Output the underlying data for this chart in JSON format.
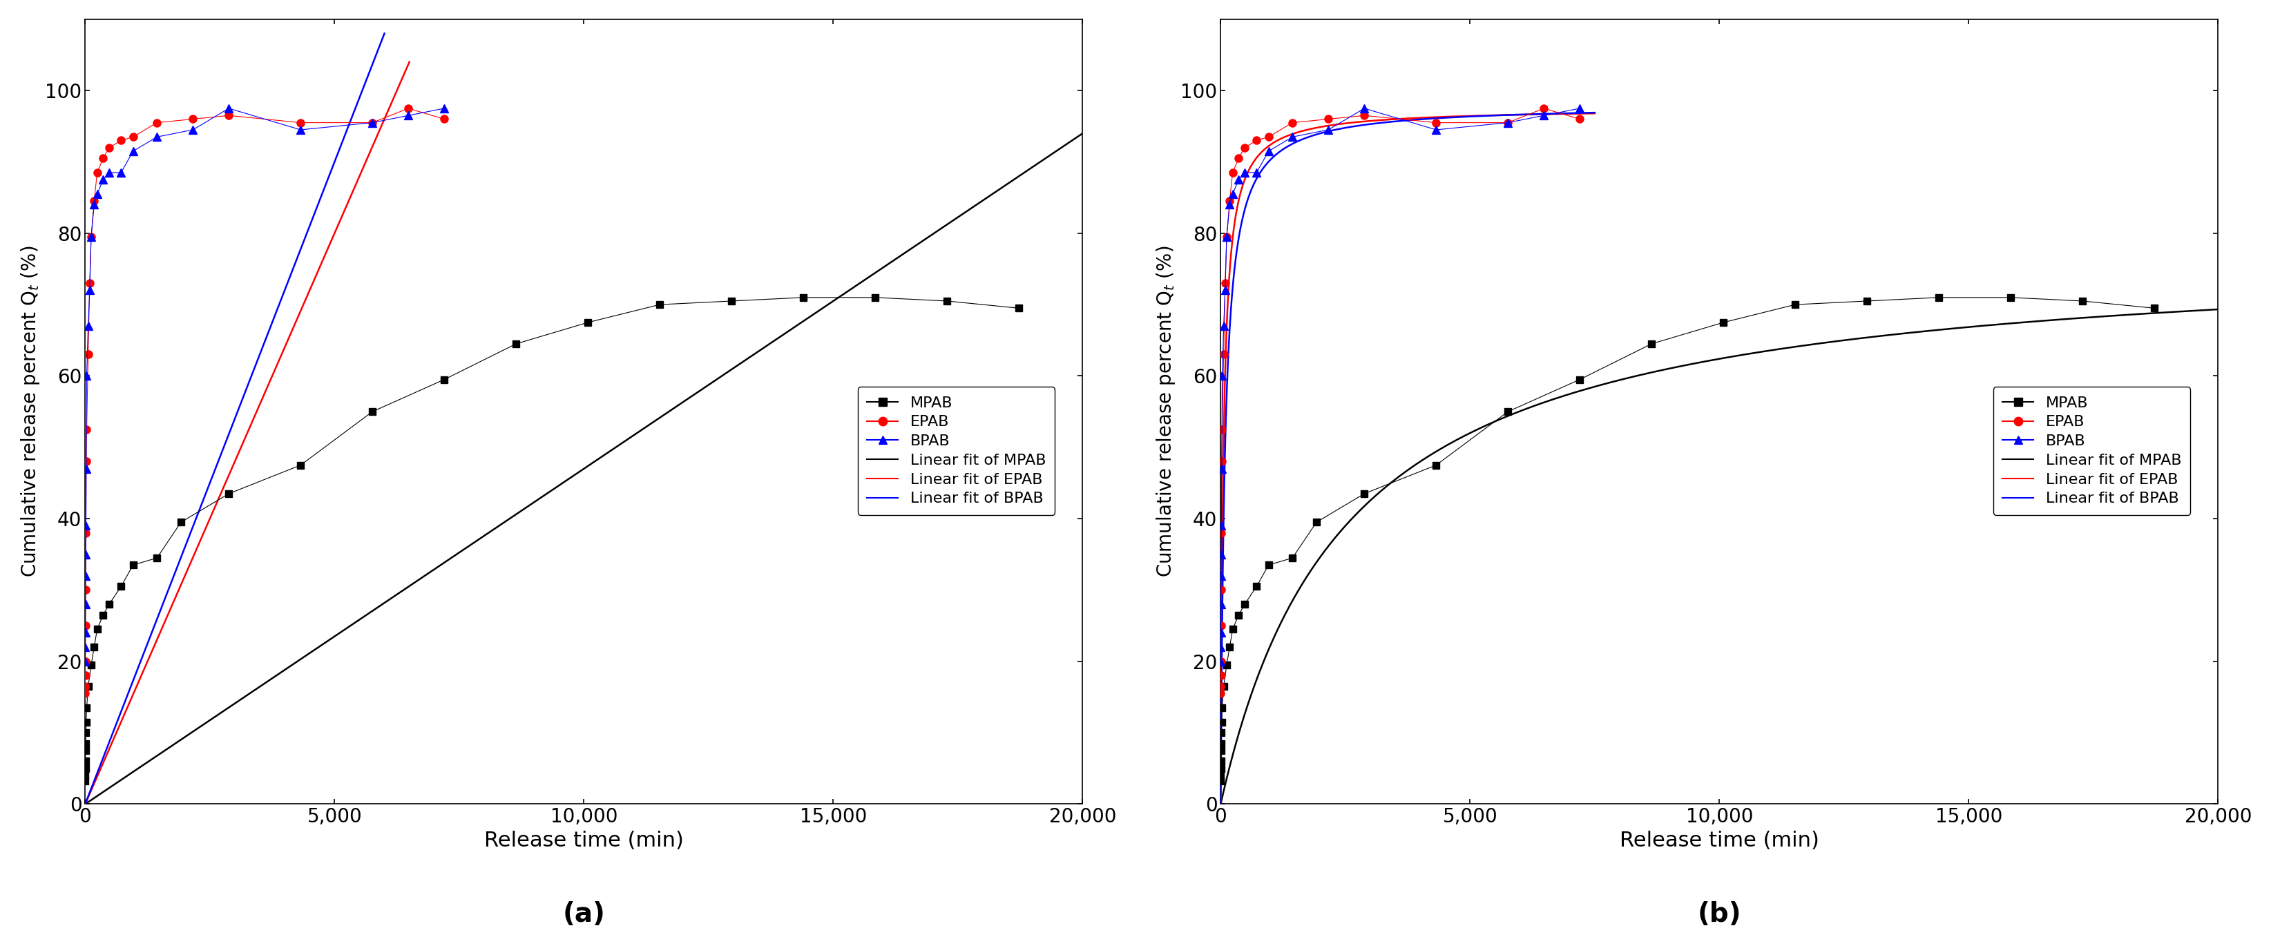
{
  "MPAB_t": [
    1,
    2,
    3,
    5,
    8,
    10,
    15,
    20,
    30,
    60,
    120,
    180,
    240,
    360,
    480,
    720,
    960,
    1440,
    1920,
    2880,
    4320,
    5760,
    7200,
    8640,
    10080,
    11520,
    12960,
    14400,
    15840,
    17280,
    18720
  ],
  "MPAB_Q": [
    3.2,
    4.0,
    5.0,
    6.0,
    7.5,
    8.5,
    10.0,
    11.5,
    13.5,
    16.5,
    19.5,
    22.0,
    24.5,
    26.5,
    28.0,
    30.5,
    33.5,
    34.5,
    39.5,
    43.5,
    47.5,
    55.0,
    59.5,
    64.5,
    67.5,
    70.0,
    70.5,
    71.0,
    71.0,
    70.5,
    69.5
  ],
  "EPAB_t": [
    1,
    2,
    3,
    5,
    8,
    10,
    15,
    20,
    30,
    60,
    90,
    120,
    180,
    240,
    360,
    480,
    720,
    960,
    1440,
    2160,
    2880,
    4320,
    5760,
    6480,
    7200
  ],
  "EPAB_Q": [
    15.5,
    16.5,
    18.0,
    20.0,
    25.0,
    30.0,
    38.0,
    48.0,
    52.5,
    63.0,
    73.0,
    79.5,
    84.5,
    88.5,
    90.5,
    92.0,
    93.0,
    93.5,
    95.5,
    96.0,
    96.5,
    95.5,
    95.5,
    97.5,
    96.0
  ],
  "BPAB_t": [
    1,
    2,
    3,
    5,
    8,
    10,
    15,
    20,
    30,
    60,
    90,
    120,
    180,
    240,
    360,
    480,
    720,
    960,
    1440,
    2160,
    2880,
    4320,
    5760,
    6480,
    7200
  ],
  "BPAB_Q": [
    20.0,
    22.0,
    24.0,
    28.0,
    32.0,
    35.0,
    39.0,
    47.0,
    60.0,
    67.0,
    72.0,
    79.5,
    84.0,
    85.5,
    87.5,
    88.5,
    88.5,
    91.5,
    93.5,
    94.5,
    97.5,
    94.5,
    95.5,
    96.5,
    97.5
  ],
  "xlim": [
    0,
    20000
  ],
  "ylim": [
    0,
    110
  ],
  "yticks": [
    0,
    20,
    40,
    60,
    80,
    100
  ],
  "xticks": [
    0,
    5000,
    10000,
    15000,
    20000
  ],
  "xlabel": "Release time (min)",
  "ylabel": "Cumulative release percent Q$_{t}$ (%)",
  "label_a": "(a)",
  "label_b": "(b)",
  "color_MPAB": "#000000",
  "color_EPAB": "#ff0000",
  "color_BPAB": "#0000ff",
  "bg_color": "#ffffff",
  "MPAB_lin_slope": 0.0047,
  "EPAB_lin_slope": 0.016,
  "BPAB_lin_slope": 0.018,
  "MPAB_curve_Qmax": 78.0,
  "MPAB_curve_K": 2500.0,
  "EPAB_curve_Qmax": 97.5,
  "EPAB_curve_K": 55.0,
  "BPAB_curve_Qmax": 98.0,
  "BPAB_curve_K": 85.0
}
